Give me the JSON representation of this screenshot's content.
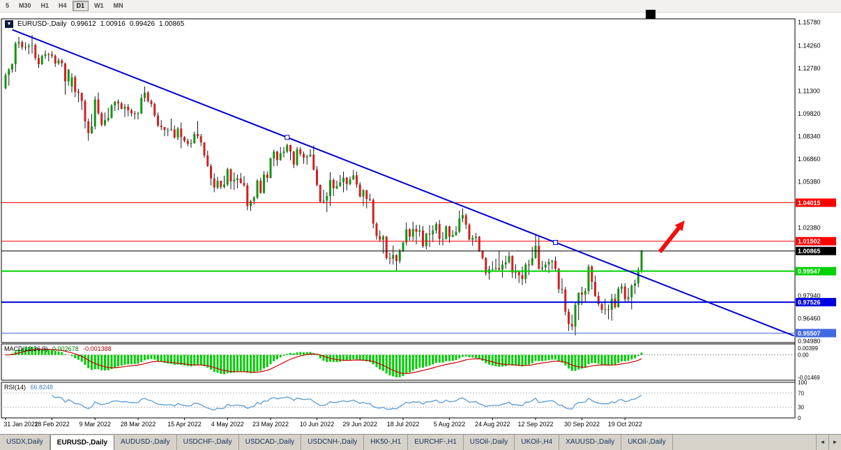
{
  "toolbar": {
    "timeframes": [
      "5",
      "M30",
      "H1",
      "H4",
      "D1",
      "W1",
      "MN"
    ],
    "active_timeframe": "D1"
  },
  "chart": {
    "symbol_title": "EURUSD-,Daily",
    "open": "0.99612",
    "high": "1.00916",
    "low": "0.99426",
    "close": "1.00865"
  },
  "chart_data": {
    "type": "candlestick",
    "symbol": "EURUSD-",
    "timeframe": "Daily",
    "colors": {
      "up": "#149414",
      "down": "#d02020",
      "wick": "#1a1a1a"
    },
    "x_labels": [
      "31 Jan 2022",
      "18 Feb 2022",
      "9 Mar 2022",
      "28 Mar 2022",
      "15 Apr 2022",
      "4 May 2022",
      "23 May 2022",
      "10 Jun 2022",
      "29 Jun 2022",
      "18 Jul 2022",
      "5 Aug 2022",
      "24 Aug 2022",
      "12 Sep 2022",
      "30 Sep 2022",
      "19 Oct 2022"
    ],
    "x_label_indices": [
      0,
      14,
      27,
      40,
      54,
      67,
      80,
      94,
      107,
      120,
      134,
      147,
      160,
      174,
      187
    ],
    "y_axis_ticks": [
      "1.15780",
      "1.14260",
      "1.12780",
      "1.11300",
      "1.09820",
      "1.08340",
      "1.06860",
      "1.05380",
      "1.02380",
      "0.97940",
      "0.96460",
      "0.94980"
    ],
    "levels": [
      {
        "price": 1.04015,
        "label": "1.04015",
        "color": "#ff0000",
        "width": 1
      },
      {
        "price": 1.01502,
        "label": "1.01502",
        "color": "#ff0000",
        "width": 1
      },
      {
        "price": 1.00865,
        "label": "1.00865",
        "color": "#000000",
        "width": 1
      },
      {
        "price": 0.99547,
        "label": "0.99547",
        "color": "#00d200",
        "width": 2
      },
      {
        "price": 0.97526,
        "label": "0.97526",
        "color": "#0000e0",
        "width": 2
      },
      {
        "price": 0.95507,
        "label": "0.95507",
        "color": "#4169e1",
        "width": 1
      }
    ],
    "trendline": {
      "from_index": 2,
      "from_price": 1.153,
      "to_index": 238,
      "to_price": 0.9533,
      "color": "#0000cc",
      "marker_indices": [
        85,
        166
      ]
    },
    "arrow": {
      "from_index": 197.5,
      "from_price": 1.008,
      "to_index": 205,
      "to_price": 1.0285,
      "color": "#f01010"
    },
    "indicators": {
      "macd": {
        "label": "MACD(12,26,9)",
        "value_main": "0.002678",
        "value_signal": "-0.001388",
        "hist_color": "#00cc00",
        "signal_color": "#c80000",
        "axis_max_label": "0.00399",
        "axis_zero_label": "0.00",
        "axis_min_label": "-0.01469"
      },
      "rsi": {
        "label": "RSI(14)",
        "value": "66.8248",
        "color": "#5b9bd5",
        "levels": [
          70,
          30
        ],
        "axis_labels": [
          "100",
          "70",
          "30",
          "0"
        ]
      }
    },
    "candles": [
      [
        1.1148,
        1.1248,
        1.114,
        1.1235
      ],
      [
        1.1235,
        1.128,
        1.1165,
        1.127
      ],
      [
        1.127,
        1.131,
        1.125,
        1.1305
      ],
      [
        1.1305,
        1.1452,
        1.1255,
        1.144
      ],
      [
        1.144,
        1.1483,
        1.141,
        1.145
      ],
      [
        1.145,
        1.146,
        1.1398,
        1.1415
      ],
      [
        1.1415,
        1.1448,
        1.1395,
        1.1418
      ],
      [
        1.1418,
        1.144,
        1.137,
        1.1425
      ],
      [
        1.1425,
        1.1495,
        1.1375,
        1.143
      ],
      [
        1.143,
        1.144,
        1.133,
        1.1345
      ],
      [
        1.1345,
        1.137,
        1.128,
        1.1305
      ],
      [
        1.1305,
        1.1368,
        1.13,
        1.1358
      ],
      [
        1.1358,
        1.1395,
        1.134,
        1.137
      ],
      [
        1.137,
        1.138,
        1.1324,
        1.1368
      ],
      [
        1.1368,
        1.139,
        1.1345,
        1.136
      ],
      [
        1.136,
        1.137,
        1.1288,
        1.131
      ],
      [
        1.131,
        1.1345,
        1.13,
        1.133
      ],
      [
        1.133,
        1.134,
        1.1287,
        1.131
      ],
      [
        1.131,
        1.1315,
        1.1106,
        1.1193
      ],
      [
        1.1193,
        1.1274,
        1.1165,
        1.127
      ],
      [
        1.116,
        1.1246,
        1.1121,
        1.122
      ],
      [
        1.122,
        1.1232,
        1.109,
        1.1125
      ],
      [
        1.1125,
        1.1145,
        1.1058,
        1.1118
      ],
      [
        1.1118,
        1.112,
        1.1007,
        1.1065
      ],
      [
        1.1065,
        1.1075,
        1.0885,
        1.0932
      ],
      [
        1.0932,
        1.095,
        1.0806,
        1.0855
      ],
      [
        1.0855,
        1.098,
        1.085,
        1.09
      ],
      [
        1.09,
        1.1095,
        1.088,
        1.1075
      ],
      [
        1.1075,
        1.112,
        1.0975,
        1.0985
      ],
      [
        1.0985,
        1.0995,
        1.09,
        1.091
      ],
      [
        1.091,
        1.099,
        1.09,
        1.094
      ],
      [
        1.094,
        1.102,
        1.093,
        1.0955
      ],
      [
        1.0955,
        1.1045,
        1.095,
        1.1035
      ],
      [
        1.1035,
        1.1065,
        1.1,
        1.106
      ],
      [
        1.106,
        1.1075,
        1.1005,
        1.105
      ],
      [
        1.105,
        1.106,
        1.101,
        1.1015
      ],
      [
        1.1015,
        1.1045,
        1.096,
        1.1028
      ],
      [
        1.1028,
        1.1045,
        1.0965,
        1.1005
      ],
      [
        1.1005,
        1.1015,
        1.0965,
        1.0985
      ],
      [
        1.0985,
        1.1,
        1.0945,
        1.098
      ],
      [
        1.098,
        1.0995,
        1.0945,
        1.0983
      ],
      [
        1.0983,
        1.111,
        1.098,
        1.1085
      ],
      [
        1.1085,
        1.116,
        1.106,
        1.112
      ],
      [
        1.112,
        1.113,
        1.1055,
        1.1065
      ],
      [
        1.1065,
        1.1075,
        1.1025,
        1.1045
      ],
      [
        1.1045,
        1.1055,
        1.096,
        1.097
      ],
      [
        1.097,
        1.099,
        1.0895,
        1.0905
      ],
      [
        1.0905,
        1.094,
        1.0875,
        1.0895
      ],
      [
        1.0895,
        1.0895,
        1.0835,
        1.0875
      ],
      [
        1.0875,
        1.089,
        1.0835,
        1.0875
      ],
      [
        1.0875,
        1.095,
        1.087,
        1.088
      ],
      [
        1.088,
        1.0905,
        1.082,
        1.0826
      ],
      [
        1.0826,
        1.0895,
        1.081,
        1.0885
      ],
      [
        1.0885,
        1.0925,
        1.0757,
        1.083
      ],
      [
        1.083,
        1.0835,
        1.0795,
        1.0805
      ],
      [
        1.0805,
        1.082,
        1.077,
        1.0785
      ],
      [
        1.0785,
        1.0815,
        1.076,
        1.079
      ],
      [
        1.079,
        1.0865,
        1.0785,
        1.085
      ],
      [
        1.085,
        1.0935,
        1.082,
        1.0835
      ],
      [
        1.0835,
        1.085,
        1.077,
        1.0795
      ],
      [
        1.0795,
        1.0795,
        1.0695,
        1.071
      ],
      [
        1.071,
        1.074,
        1.0635,
        1.064
      ],
      [
        1.064,
        1.0655,
        1.0515,
        1.056
      ],
      [
        1.056,
        1.0593,
        1.047,
        1.05
      ],
      [
        1.05,
        1.057,
        1.049,
        1.0545
      ],
      [
        1.0545,
        1.0545,
        1.049,
        1.0505
      ],
      [
        1.0505,
        1.0578,
        1.0495,
        1.052
      ],
      [
        1.052,
        1.063,
        1.051,
        1.062
      ],
      [
        1.062,
        1.0625,
        1.049,
        1.054
      ],
      [
        1.054,
        1.06,
        1.0485,
        1.055
      ],
      [
        1.055,
        1.0585,
        1.0495,
        1.056
      ],
      [
        1.056,
        1.0595,
        1.0525,
        1.053
      ],
      [
        1.053,
        1.0575,
        1.0505,
        1.0515
      ],
      [
        1.0515,
        1.053,
        1.0352,
        1.038
      ],
      [
        1.038,
        1.042,
        1.0348,
        1.0412
      ],
      [
        1.0412,
        1.0445,
        1.039,
        1.0435
      ],
      [
        1.0435,
        1.0555,
        1.0425,
        1.0545
      ],
      [
        1.0545,
        1.0565,
        1.046,
        1.0465
      ],
      [
        1.0465,
        1.0608,
        1.046,
        1.0585
      ],
      [
        1.0585,
        1.0605,
        1.0535,
        1.0563
      ],
      [
        1.0563,
        1.0697,
        1.056,
        1.069
      ],
      [
        1.069,
        1.0748,
        1.064,
        1.0735
      ],
      [
        1.0735,
        1.074,
        1.0642,
        1.068
      ],
      [
        1.068,
        1.0765,
        1.0675,
        1.0725
      ],
      [
        1.0725,
        1.0765,
        1.0697,
        1.0735
      ],
      [
        1.0735,
        1.0786,
        1.0725,
        1.0778
      ],
      [
        1.0778,
        1.078,
        1.0678,
        1.0735
      ],
      [
        1.0735,
        1.074,
        1.0627,
        1.065
      ],
      [
        1.065,
        1.0765,
        1.064,
        1.075
      ],
      [
        1.075,
        1.0764,
        1.0705,
        1.072
      ],
      [
        1.072,
        1.0735,
        1.0655,
        1.0695
      ],
      [
        1.0695,
        1.0715,
        1.065,
        1.0703
      ],
      [
        1.0703,
        1.075,
        1.07,
        1.0715
      ],
      [
        1.0715,
        1.0774,
        1.0611,
        1.0617
      ],
      [
        1.0617,
        1.064,
        1.0508,
        1.0518
      ],
      [
        1.0518,
        1.052,
        1.0399,
        1.0408
      ],
      [
        1.0408,
        1.0485,
        1.0396,
        1.0415
      ],
      [
        1.0415,
        1.047,
        1.034,
        1.0445
      ],
      [
        1.0445,
        1.06,
        1.038,
        1.055
      ],
      [
        1.055,
        1.056,
        1.0445,
        1.0495
      ],
      [
        1.0495,
        1.0545,
        1.049,
        1.051
      ],
      [
        1.051,
        1.0582,
        1.0505,
        1.0535
      ],
      [
        1.0535,
        1.0605,
        1.047,
        1.0565
      ],
      [
        1.0565,
        1.057,
        1.0483,
        1.0523
      ],
      [
        1.0523,
        1.0572,
        1.0515,
        1.0552
      ],
      [
        1.0552,
        1.0615,
        1.055,
        1.058
      ],
      [
        1.058,
        1.0605,
        1.05,
        1.052
      ],
      [
        1.052,
        1.0535,
        1.0435,
        1.0442
      ],
      [
        1.0442,
        1.049,
        1.038,
        1.0483
      ],
      [
        1.0483,
        1.0485,
        1.0365,
        1.0425
      ],
      [
        1.0425,
        1.046,
        1.041,
        1.042
      ],
      [
        1.042,
        1.043,
        1.0235,
        1.0265
      ],
      [
        1.0265,
        1.0275,
        1.016,
        1.0183
      ],
      [
        1.0183,
        1.022,
        1.0145,
        1.016
      ],
      [
        1.016,
        1.019,
        1.007,
        1.018
      ],
      [
        1.018,
        1.0185,
        1.003,
        1.004
      ],
      [
        1.004,
        1.0075,
        1.0,
        1.0037
      ],
      [
        1.0037,
        1.0122,
        0.9998,
        1.006
      ],
      [
        1.006,
        1.0065,
        0.9952,
        1.002
      ],
      [
        1.002,
        1.01,
        1.0005,
        1.0085
      ],
      [
        1.0085,
        1.015,
        1.008,
        1.0142
      ],
      [
        1.0142,
        1.0273,
        1.0122,
        1.0227
      ],
      [
        1.0227,
        1.0235,
        1.0155,
        1.018
      ],
      [
        1.018,
        1.0278,
        1.0152,
        1.023
      ],
      [
        1.023,
        1.0257,
        1.013,
        1.0212
      ],
      [
        1.0212,
        1.0258,
        1.018,
        1.022
      ],
      [
        1.022,
        1.025,
        1.0108,
        1.0118
      ],
      [
        1.0118,
        1.0205,
        1.0097,
        1.02
      ],
      [
        1.02,
        1.0255,
        1.0113,
        1.0195
      ],
      [
        1.0195,
        1.0254,
        1.0145,
        1.022
      ],
      [
        1.022,
        1.0275,
        1.02,
        1.0262
      ],
      [
        1.0262,
        1.0288,
        1.0125,
        1.0165
      ],
      [
        1.0165,
        1.021,
        1.0123,
        1.0165
      ],
      [
        1.0165,
        1.0254,
        1.016,
        1.0247
      ],
      [
        1.0247,
        1.025,
        1.014,
        1.018
      ],
      [
        1.018,
        1.0222,
        1.0175,
        1.019
      ],
      [
        1.019,
        1.0249,
        1.0185,
        1.0212
      ],
      [
        1.0212,
        1.035,
        1.0202,
        1.0298
      ],
      [
        1.0298,
        1.0365,
        1.0275,
        1.032
      ],
      [
        1.032,
        1.033,
        1.023,
        1.0258
      ],
      [
        1.0258,
        1.0268,
        1.0155,
        1.016
      ],
      [
        1.016,
        1.019,
        1.012,
        1.0172
      ],
      [
        1.0172,
        1.0203,
        1.0145,
        1.018
      ],
      [
        1.018,
        1.0185,
        1.008,
        1.0088
      ],
      [
        1.0088,
        1.0092,
        1.003,
        1.004
      ],
      [
        1.004,
        1.0047,
        0.9926,
        0.9942
      ],
      [
        0.9942,
        0.999,
        0.99,
        0.9968
      ],
      [
        0.9968,
        1.002,
        0.9955,
        0.9968
      ],
      [
        0.9968,
        1.0035,
        0.996,
        0.9975
      ],
      [
        0.9975,
        1.009,
        0.996,
        0.9965
      ],
      [
        0.9965,
        1.0025,
        0.9912,
        0.9998
      ],
      [
        0.9998,
        1.0055,
        0.997,
        1.0012
      ],
      [
        1.0012,
        1.008,
        1.0005,
        1.0054
      ],
      [
        1.0054,
        1.0058,
        0.991,
        0.9945
      ],
      [
        0.9945,
        1.0,
        0.9905,
        0.9952
      ],
      [
        0.9952,
        0.996,
        0.9878,
        0.9928
      ],
      [
        0.9928,
        0.9986,
        0.9864,
        0.9903
      ],
      [
        0.9903,
        1.001,
        0.9875,
        0.9998
      ],
      [
        0.9998,
        1.0029,
        0.993,
        0.9995
      ],
      [
        0.9995,
        1.0113,
        0.999,
        1.004
      ],
      [
        1.004,
        1.0198,
        1.0035,
        1.012
      ],
      [
        1.012,
        1.0187,
        0.9965,
        0.997
      ],
      [
        0.997,
        1.0022,
        0.9955,
        0.9978
      ],
      [
        0.9978,
        1.0017,
        0.9955,
        0.9998
      ],
      [
        0.9998,
        1.0035,
        0.9943,
        1.0015
      ],
      [
        1.0015,
        1.0028,
        0.9965,
        1.0023
      ],
      [
        1.0023,
        1.005,
        0.9955,
        0.997
      ],
      [
        0.997,
        0.9975,
        0.9812,
        0.9838
      ],
      [
        0.9838,
        0.9907,
        0.9807,
        0.9835
      ],
      [
        0.9835,
        0.9852,
        0.9667,
        0.969
      ],
      [
        0.969,
        0.9709,
        0.9565,
        0.961
      ],
      [
        0.961,
        0.967,
        0.957,
        0.9594
      ],
      [
        0.9594,
        0.975,
        0.9535,
        0.9735
      ],
      [
        0.9735,
        0.9815,
        0.9635,
        0.9815
      ],
      [
        0.9815,
        0.9853,
        0.9733,
        0.9802
      ],
      [
        0.9802,
        0.9844,
        0.9751,
        0.9825
      ],
      [
        0.9825,
        0.9999,
        0.9805,
        0.9985
      ],
      [
        0.9985,
        0.9995,
        0.9835,
        0.9885
      ],
      [
        0.9885,
        0.9926,
        0.9787,
        0.9793
      ],
      [
        0.9793,
        0.982,
        0.9726,
        0.974
      ],
      [
        0.974,
        0.9757,
        0.968,
        0.9703
      ],
      [
        0.9703,
        0.9774,
        0.967,
        0.9707
      ],
      [
        0.9707,
        0.9737,
        0.9641,
        0.9702
      ],
      [
        0.9702,
        0.9807,
        0.9632,
        0.9775
      ],
      [
        0.9775,
        0.9808,
        0.971,
        0.972
      ],
      [
        0.972,
        0.9854,
        0.9717,
        0.984
      ],
      [
        0.984,
        0.9875,
        0.981,
        0.9855
      ],
      [
        0.9855,
        0.9876,
        0.9756,
        0.9772
      ],
      [
        0.9772,
        0.9845,
        0.9755,
        0.9785
      ],
      [
        0.9785,
        0.987,
        0.9705,
        0.986
      ],
      [
        0.986,
        0.9899,
        0.9805,
        0.9875
      ],
      [
        0.9875,
        0.998,
        0.985,
        0.9961
      ],
      [
        0.9961,
        1.0092,
        0.9943,
        1.0087
      ]
    ]
  },
  "tab_bar": {
    "tabs": [
      "USDX,Daily",
      "EURUSD-,Daily",
      "AUDUSD-,Daily",
      "USDCHF-,Daily",
      "USDCAD-,Daily",
      "USDCNH-,Daily",
      "HK50-,H1",
      "EURCHF-,H1",
      "USOil-,Daily",
      "UKOil-,H4",
      "XAUUSD-,Daily",
      "UKOil-,Daily"
    ],
    "active_tab": "EURUSD-,Daily",
    "scroll_left": "◄",
    "scroll_right": "►"
  }
}
